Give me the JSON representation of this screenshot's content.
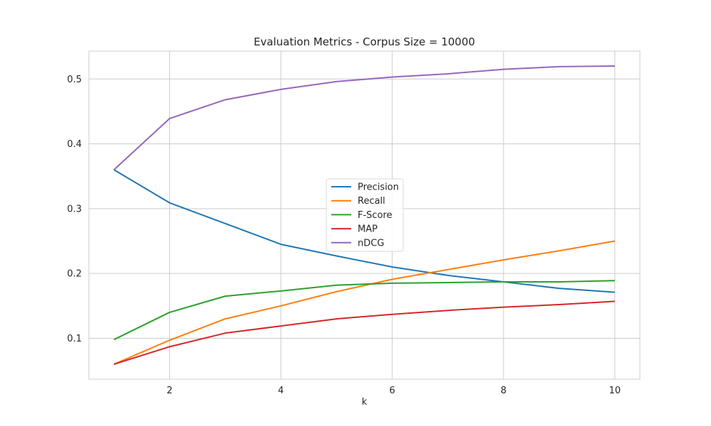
{
  "chart_data": {
    "type": "line",
    "title": "Evaluation Metrics - Corpus Size = 10000",
    "xlabel": "k",
    "ylabel": "",
    "x": [
      1,
      2,
      3,
      4,
      5,
      6,
      7,
      8,
      9,
      10
    ],
    "xlim": [
      0.55,
      10.45
    ],
    "ylim": [
      0.037,
      0.543
    ],
    "xticks": [
      2,
      4,
      6,
      8,
      10
    ],
    "yticks": [
      0.1,
      0.2,
      0.3,
      0.4,
      0.5
    ],
    "xtick_labels": [
      "2",
      "4",
      "6",
      "8",
      "10"
    ],
    "ytick_labels": [
      "0.1",
      "0.2",
      "0.3",
      "0.4",
      "0.5"
    ],
    "grid": true,
    "legend_position": "center",
    "series": [
      {
        "name": "Precision",
        "color": "#1f77b4",
        "values": [
          0.36,
          0.309,
          0.277,
          0.245,
          0.227,
          0.21,
          0.197,
          0.187,
          0.177,
          0.171
        ]
      },
      {
        "name": "Recall",
        "color": "#ff7f0e",
        "values": [
          0.06,
          0.097,
          0.13,
          0.15,
          0.172,
          0.191,
          0.206,
          0.221,
          0.235,
          0.25
        ]
      },
      {
        "name": "F-Score",
        "color": "#2ca02c",
        "values": [
          0.098,
          0.14,
          0.165,
          0.173,
          0.182,
          0.185,
          0.186,
          0.187,
          0.187,
          0.189
        ]
      },
      {
        "name": "MAP",
        "color": "#d62728",
        "values": [
          0.06,
          0.087,
          0.108,
          0.119,
          0.13,
          0.137,
          0.143,
          0.148,
          0.152,
          0.157
        ]
      },
      {
        "name": "nDCG",
        "color": "#9467bd",
        "values": [
          0.36,
          0.439,
          0.468,
          0.484,
          0.496,
          0.503,
          0.508,
          0.515,
          0.519,
          0.52
        ]
      }
    ]
  }
}
